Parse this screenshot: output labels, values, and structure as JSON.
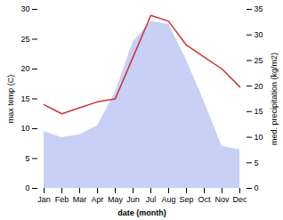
{
  "chart_data": {
    "type": "line",
    "xlabel": "date (month)",
    "ylabel": "max temp (C)",
    "y2label": "med. precipitation (kg/m2)",
    "categories": [
      "Jan",
      "Feb",
      "Mar",
      "Apr",
      "May",
      "Jun",
      "Jul",
      "Aug",
      "Sep",
      "Oct",
      "Nov",
      "Dec"
    ],
    "series": [
      {
        "type": "area",
        "color": "#c8d0f5",
        "values": [
          9.5,
          8.5,
          9.0,
          10.5,
          16.0,
          24.5,
          28.0,
          27.5,
          21.5,
          14.5,
          7.0,
          6.5
        ]
      },
      {
        "type": "line",
        "color": "#cc3333",
        "values": [
          14.0,
          12.5,
          13.5,
          14.5,
          15.0,
          22.0,
          29.0,
          28.0,
          24.0,
          22.0,
          20.0,
          17.0
        ]
      }
    ],
    "ylim": [
      0,
      30
    ],
    "yticks": [
      0,
      5,
      10,
      15,
      20,
      25,
      30
    ],
    "y2lim": [
      0,
      35
    ],
    "y2ticks": [
      0,
      5,
      10,
      15,
      20,
      25,
      30,
      35
    ],
    "grid": false
  }
}
